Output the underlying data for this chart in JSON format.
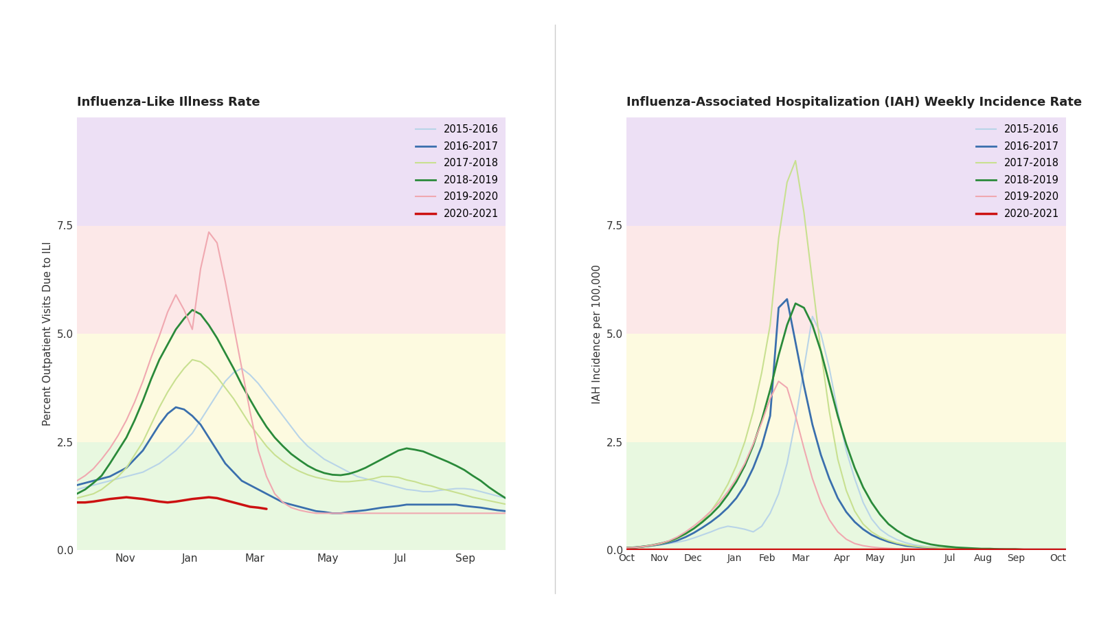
{
  "title_left": "Influenza-Like Illness Rate",
  "title_right": "Influenza-Associated Hospitalization (IAH) Weekly Incidence Rate",
  "ylabel_left": "Percent Outpatient Visits Due to ILI",
  "ylabel_right": "IAH Incidence per 100,000",
  "legend_labels": [
    "2015-2016",
    "2016-2017",
    "2017-2018",
    "2018-2019",
    "2019-2020",
    "2020-2021"
  ],
  "line_colors": [
    "#b8d4e8",
    "#3a6fad",
    "#c8e090",
    "#2a8a3a",
    "#f0a8b0",
    "#cc1111"
  ],
  "line_widths": [
    1.5,
    2.0,
    1.5,
    2.0,
    1.5,
    2.5
  ],
  "band_colors": {
    "purple": "#ede0f5",
    "pink": "#fce8e8",
    "yellow": "#fdfae0",
    "green": "#e8f8e0"
  },
  "band_ranges": {
    "purple": [
      7.5,
      10.5
    ],
    "pink": [
      5.0,
      7.5
    ],
    "yellow": [
      2.5,
      5.0
    ],
    "green": [
      0.0,
      2.5
    ]
  },
  "left_ylim": [
    0.0,
    10.0
  ],
  "right_ylim": [
    0.0,
    10.0
  ],
  "left_yticks": [
    0.0,
    2.5,
    5.0,
    7.5
  ],
  "right_yticks": [
    0.0,
    2.5,
    5.0,
    7.5
  ],
  "left_xtick_positions": [
    6,
    14,
    22,
    31,
    40,
    48
  ],
  "left_xtick_labels": [
    "Nov",
    "Jan",
    "Mar",
    "May",
    "Jul",
    "Sep"
  ],
  "right_xtick_positions": [
    0,
    4,
    8,
    13,
    17,
    21,
    26,
    30,
    34,
    39,
    43,
    47,
    52
  ],
  "right_xtick_labels": [
    "Oct",
    "Nov",
    "Dec",
    "Jan",
    "Feb",
    "Mar",
    "Apr",
    "May",
    "Jun",
    "Jul",
    "Aug",
    "Sep",
    "Oct"
  ],
  "ili_2015_2016": [
    1.4,
    1.45,
    1.5,
    1.55,
    1.6,
    1.65,
    1.7,
    1.75,
    1.8,
    1.9,
    2.0,
    2.15,
    2.3,
    2.5,
    2.7,
    3.0,
    3.3,
    3.6,
    3.9,
    4.1,
    4.2,
    4.05,
    3.85,
    3.6,
    3.35,
    3.1,
    2.85,
    2.6,
    2.4,
    2.25,
    2.1,
    2.0,
    1.9,
    1.8,
    1.7,
    1.65,
    1.6,
    1.55,
    1.5,
    1.45,
    1.4,
    1.38,
    1.35,
    1.35,
    1.38,
    1.4,
    1.42,
    1.42,
    1.4,
    1.35,
    1.3,
    1.25,
    1.2
  ],
  "ili_2016_2017": [
    1.5,
    1.55,
    1.6,
    1.65,
    1.7,
    1.8,
    1.9,
    2.1,
    2.3,
    2.6,
    2.9,
    3.15,
    3.3,
    3.25,
    3.1,
    2.9,
    2.6,
    2.3,
    2.0,
    1.8,
    1.6,
    1.5,
    1.4,
    1.3,
    1.2,
    1.1,
    1.05,
    1.0,
    0.95,
    0.9,
    0.88,
    0.85,
    0.85,
    0.88,
    0.9,
    0.92,
    0.95,
    0.98,
    1.0,
    1.02,
    1.05,
    1.05,
    1.05,
    1.05,
    1.05,
    1.05,
    1.05,
    1.02,
    1.0,
    0.98,
    0.95,
    0.92,
    0.9
  ],
  "ili_2017_2018": [
    1.2,
    1.25,
    1.3,
    1.4,
    1.55,
    1.7,
    1.9,
    2.2,
    2.5,
    2.9,
    3.3,
    3.65,
    3.95,
    4.2,
    4.4,
    4.35,
    4.2,
    4.0,
    3.75,
    3.5,
    3.2,
    2.9,
    2.65,
    2.4,
    2.2,
    2.05,
    1.92,
    1.82,
    1.74,
    1.68,
    1.64,
    1.6,
    1.58,
    1.58,
    1.6,
    1.62,
    1.65,
    1.7,
    1.7,
    1.68,
    1.62,
    1.58,
    1.52,
    1.48,
    1.42,
    1.38,
    1.33,
    1.28,
    1.22,
    1.18,
    1.14,
    1.1,
    1.06
  ],
  "ili_2018_2019": [
    1.3,
    1.4,
    1.55,
    1.72,
    2.0,
    2.3,
    2.6,
    3.0,
    3.45,
    3.95,
    4.4,
    4.75,
    5.1,
    5.35,
    5.55,
    5.45,
    5.2,
    4.9,
    4.55,
    4.2,
    3.82,
    3.48,
    3.15,
    2.85,
    2.6,
    2.4,
    2.22,
    2.08,
    1.95,
    1.85,
    1.78,
    1.74,
    1.73,
    1.76,
    1.82,
    1.9,
    2.0,
    2.1,
    2.2,
    2.3,
    2.35,
    2.32,
    2.28,
    2.2,
    2.12,
    2.04,
    1.95,
    1.85,
    1.72,
    1.6,
    1.45,
    1.32,
    1.2
  ],
  "ili_2019_2020": [
    1.6,
    1.72,
    1.88,
    2.1,
    2.35,
    2.65,
    3.0,
    3.42,
    3.9,
    4.45,
    4.95,
    5.5,
    5.9,
    5.55,
    5.1,
    6.5,
    7.35,
    7.1,
    6.2,
    5.2,
    4.2,
    3.2,
    2.3,
    1.7,
    1.3,
    1.1,
    0.98,
    0.92,
    0.88,
    0.85,
    0.85,
    0.85,
    0.85,
    0.85,
    0.85,
    0.85,
    0.85,
    0.85,
    0.85,
    0.85,
    0.85,
    0.85,
    0.85,
    0.85,
    0.85,
    0.85,
    0.85,
    0.85,
    0.85,
    0.85,
    0.85,
    0.85,
    0.85
  ],
  "ili_2020_2021": [
    1.1,
    1.1,
    1.12,
    1.15,
    1.18,
    1.2,
    1.22,
    1.2,
    1.18,
    1.15,
    1.12,
    1.1,
    1.12,
    1.15,
    1.18,
    1.2,
    1.22,
    1.2,
    1.15,
    1.1,
    1.05,
    1.0,
    0.98,
    0.95,
    null,
    null,
    null,
    null,
    null,
    null,
    null,
    null,
    null,
    null,
    null,
    null,
    null,
    null,
    null,
    null,
    null,
    null,
    null,
    null,
    null,
    null,
    null,
    null,
    null,
    null,
    null,
    null,
    null
  ],
  "hosp_2015_2016": [
    0.05,
    0.06,
    0.08,
    0.1,
    0.12,
    0.15,
    0.18,
    0.22,
    0.28,
    0.35,
    0.42,
    0.5,
    0.55,
    0.52,
    0.48,
    0.42,
    0.55,
    0.85,
    1.3,
    2.0,
    3.0,
    4.2,
    5.4,
    5.0,
    4.2,
    3.2,
    2.3,
    1.65,
    1.1,
    0.72,
    0.48,
    0.34,
    0.24,
    0.17,
    0.12,
    0.09,
    0.07,
    0.06,
    0.05,
    0.04,
    0.04,
    0.03,
    0.03,
    0.03,
    0.02,
    0.02,
    0.02,
    0.02,
    0.02,
    0.02,
    0.02,
    0.02,
    0.02
  ],
  "hosp_2016_2017": [
    0.05,
    0.06,
    0.08,
    0.1,
    0.13,
    0.17,
    0.22,
    0.3,
    0.4,
    0.52,
    0.65,
    0.8,
    0.98,
    1.2,
    1.5,
    1.9,
    2.4,
    3.1,
    5.6,
    5.8,
    4.8,
    3.8,
    2.9,
    2.2,
    1.65,
    1.2,
    0.88,
    0.65,
    0.48,
    0.35,
    0.26,
    0.19,
    0.14,
    0.1,
    0.08,
    0.06,
    0.05,
    0.04,
    0.04,
    0.03,
    0.03,
    0.02,
    0.02,
    0.02,
    0.02,
    0.01,
    0.01,
    0.01,
    0.01,
    0.01,
    0.01,
    0.01,
    0.01
  ],
  "hosp_2017_2018": [
    0.05,
    0.06,
    0.08,
    0.1,
    0.14,
    0.19,
    0.26,
    0.36,
    0.5,
    0.68,
    0.9,
    1.18,
    1.52,
    1.95,
    2.5,
    3.2,
    4.1,
    5.2,
    7.2,
    8.5,
    9.0,
    7.8,
    6.2,
    4.6,
    3.2,
    2.1,
    1.38,
    0.9,
    0.6,
    0.42,
    0.3,
    0.22,
    0.16,
    0.12,
    0.09,
    0.07,
    0.06,
    0.05,
    0.04,
    0.04,
    0.03,
    0.03,
    0.02,
    0.02,
    0.02,
    0.02,
    0.01,
    0.01,
    0.01,
    0.01,
    0.01,
    0.01,
    0.01
  ],
  "hosp_2018_2019": [
    0.05,
    0.06,
    0.08,
    0.11,
    0.15,
    0.2,
    0.28,
    0.38,
    0.5,
    0.65,
    0.82,
    1.02,
    1.28,
    1.58,
    1.95,
    2.42,
    3.0,
    3.7,
    4.5,
    5.2,
    5.7,
    5.6,
    5.2,
    4.6,
    3.85,
    3.1,
    2.45,
    1.9,
    1.45,
    1.1,
    0.82,
    0.6,
    0.45,
    0.33,
    0.24,
    0.18,
    0.13,
    0.1,
    0.08,
    0.06,
    0.05,
    0.04,
    0.03,
    0.03,
    0.02,
    0.02,
    0.02,
    0.01,
    0.01,
    0.01,
    0.01,
    0.01,
    0.01
  ],
  "hosp_2019_2020": [
    0.05,
    0.06,
    0.08,
    0.11,
    0.15,
    0.21,
    0.3,
    0.42,
    0.56,
    0.72,
    0.9,
    1.1,
    1.35,
    1.65,
    2.0,
    2.45,
    2.95,
    3.5,
    3.9,
    3.75,
    3.1,
    2.35,
    1.65,
    1.1,
    0.7,
    0.42,
    0.25,
    0.15,
    0.1,
    0.07,
    0.05,
    0.04,
    0.03,
    0.03,
    0.02,
    0.02,
    0.02,
    0.01,
    0.01,
    0.01,
    0.01,
    0.01,
    0.01,
    0.01,
    0.01,
    0.01,
    0.01,
    0.01,
    0.01,
    0.01,
    0.01,
    0.01,
    0.01
  ],
  "hosp_2020_2021": [
    0.02,
    0.02,
    0.02,
    0.02,
    0.02,
    0.02,
    0.02,
    0.02,
    0.02,
    0.02,
    0.02,
    0.02,
    0.02,
    0.02,
    0.02,
    0.02,
    0.02,
    0.02,
    0.02,
    0.02,
    0.02,
    0.02,
    0.02,
    0.02,
    0.02,
    0.02,
    0.02,
    0.02,
    0.02,
    0.02,
    0.02,
    0.02,
    0.02,
    0.02,
    0.02,
    0.02,
    0.02,
    0.02,
    0.02,
    0.02,
    0.02,
    0.02,
    0.02,
    0.02,
    0.02,
    0.02,
    0.02,
    0.02,
    0.02,
    0.02,
    0.02,
    0.02,
    0.02
  ]
}
